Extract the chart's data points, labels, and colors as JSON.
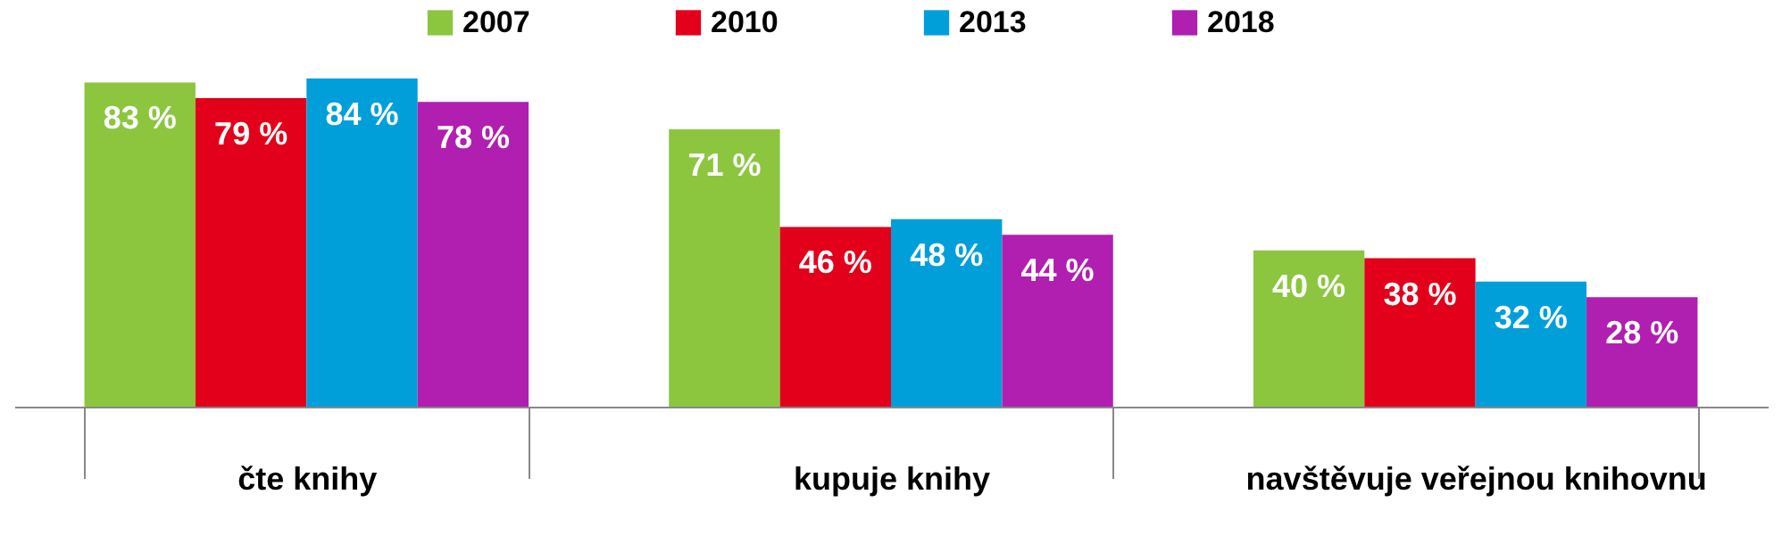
{
  "chart_data": {
    "type": "bar",
    "categories": [
      "čte knihy",
      "kupuje knihy",
      "navštěvuje veřejnou knihovnu"
    ],
    "series": [
      {
        "name": "2007",
        "color": "#8cc63f",
        "values": [
          83,
          71,
          40
        ],
        "value_labels": [
          "83 %",
          "71 %",
          "40 %"
        ]
      },
      {
        "name": "2010",
        "color": "#e2001a",
        "values": [
          79,
          46,
          38
        ],
        "value_labels": [
          "79 %",
          "46 %",
          "38 %"
        ]
      },
      {
        "name": "2013",
        "color": "#009fda",
        "values": [
          84,
          48,
          32
        ],
        "value_labels": [
          "84 %",
          "48 %",
          "32 %"
        ]
      },
      {
        "name": "2018",
        "color": "#b01fb0",
        "values": [
          78,
          44,
          28
        ],
        "value_labels": [
          "78 %",
          "44 %",
          "28 %"
        ]
      }
    ],
    "legend": "top",
    "tick_labels": "x"
  }
}
